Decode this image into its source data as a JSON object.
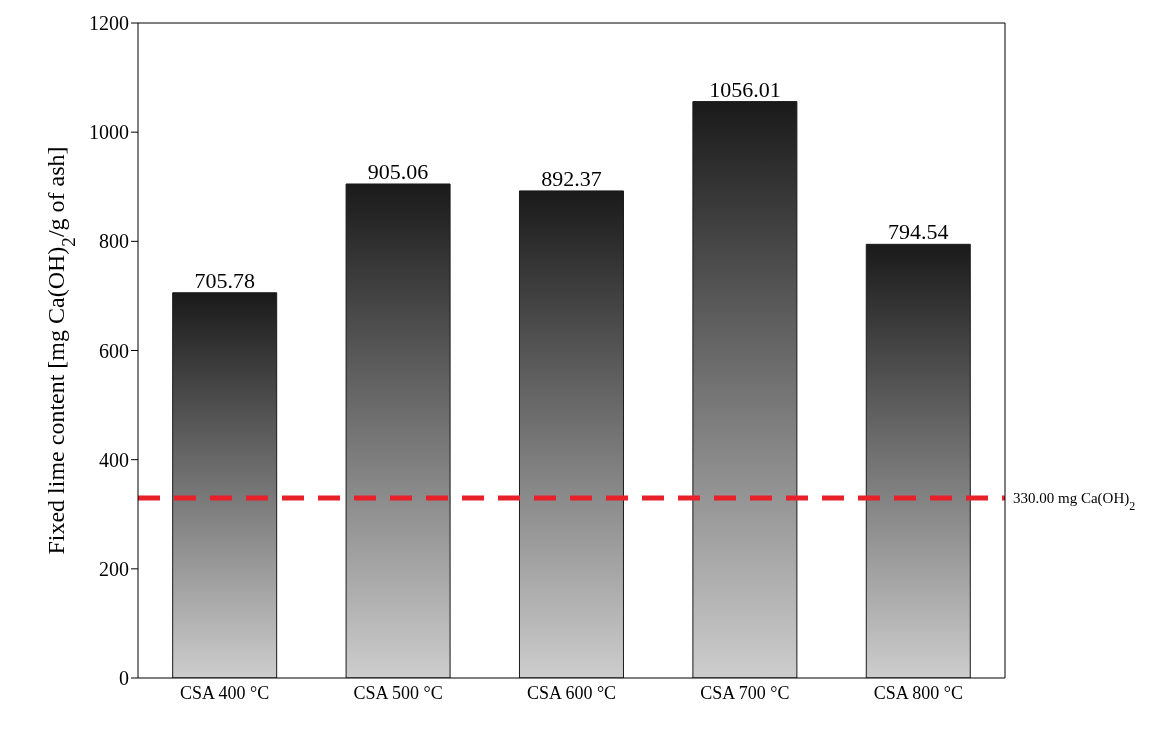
{
  "chart_data": {
    "type": "bar",
    "ylabel": "Fixed lime content [mg Ca(OH)$_{2}$/g of ash]",
    "categories": [
      "CSA 400 °C",
      "CSA 500 °C",
      "CSA 600 °C",
      "CSA 700 °C",
      "CSA 800 °C"
    ],
    "values": [
      705.78,
      905.06,
      892.37,
      1056.01,
      794.54
    ],
    "color": "#1a1a1a",
    "ylim": [
      0,
      1200
    ],
    "yticks": [
      0,
      200,
      400,
      600,
      800,
      1000,
      1200
    ],
    "grid": false,
    "data_labels": true,
    "ref_lines": [
      {
        "axis": "y",
        "value": 330,
        "label": "330.00 mg Ca(OH)$_{2}$",
        "color": "#e8202a",
        "line_style": "dashed"
      }
    ]
  }
}
